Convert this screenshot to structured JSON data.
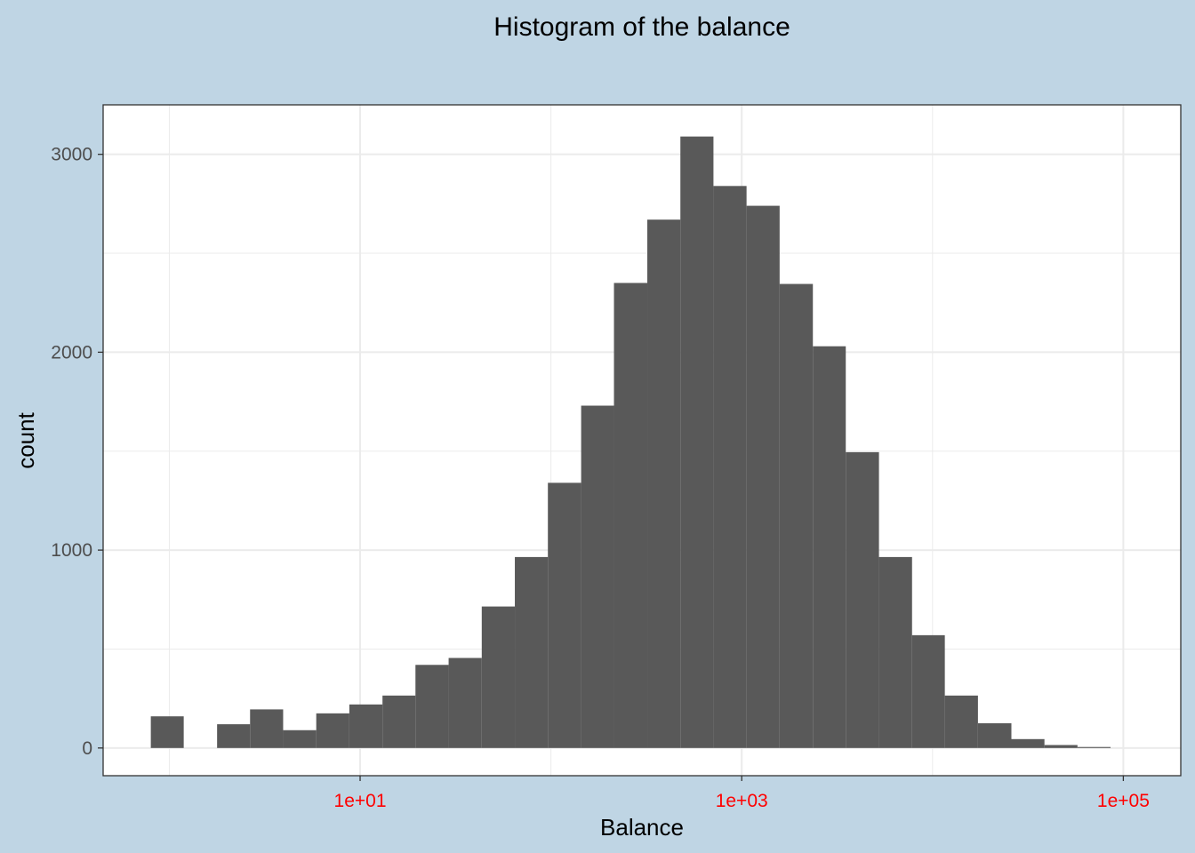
{
  "chart_data": {
    "type": "bar",
    "title": "Histogram of the balance",
    "xlabel": "Balance",
    "ylabel": "count",
    "x_scale": "log10",
    "xlim": [
      0.45,
      200000
    ],
    "ylim": [
      -140,
      3250
    ],
    "x_ticks": [
      {
        "value": 10,
        "label": "1e+01"
      },
      {
        "value": 1000,
        "label": "1e+03"
      },
      {
        "value": 100000,
        "label": "1e+05"
      }
    ],
    "y_ticks": [
      {
        "value": 0,
        "label": "0"
      },
      {
        "value": 1000,
        "label": "1000"
      },
      {
        "value": 2000,
        "label": "2000"
      },
      {
        "value": 3000,
        "label": "3000"
      }
    ],
    "grid": true,
    "legend": "none",
    "bar_color": "#595959",
    "plot_background": "#ffffff",
    "figure_background": "#bfd5e4",
    "gridline_color": "#ebebeb",
    "x_tick_label_color": "#ff0000",
    "bins": [
      {
        "x0": 0.8,
        "x1": 1.19,
        "count": 160
      },
      {
        "x0": 1.19,
        "x1": 1.78,
        "count": 0
      },
      {
        "x0": 1.78,
        "x1": 2.65,
        "count": 120
      },
      {
        "x0": 2.65,
        "x1": 3.95,
        "count": 195
      },
      {
        "x0": 3.95,
        "x1": 5.89,
        "count": 90
      },
      {
        "x0": 5.89,
        "x1": 8.78,
        "count": 175
      },
      {
        "x0": 8.78,
        "x1": 13.1,
        "count": 220
      },
      {
        "x0": 13.1,
        "x1": 19.5,
        "count": 265
      },
      {
        "x0": 19.5,
        "x1": 29.1,
        "count": 420
      },
      {
        "x0": 29.1,
        "x1": 43.4,
        "count": 455
      },
      {
        "x0": 43.4,
        "x1": 64.7,
        "count": 715
      },
      {
        "x0": 64.7,
        "x1": 96.4,
        "count": 965
      },
      {
        "x0": 96.4,
        "x1": 144,
        "count": 1340
      },
      {
        "x0": 144,
        "x1": 214,
        "count": 1730
      },
      {
        "x0": 214,
        "x1": 320,
        "count": 2350
      },
      {
        "x0": 320,
        "x1": 477,
        "count": 2670
      },
      {
        "x0": 477,
        "x1": 711,
        "count": 3090
      },
      {
        "x0": 711,
        "x1": 1060,
        "count": 2840
      },
      {
        "x0": 1060,
        "x1": 1580,
        "count": 2740
      },
      {
        "x0": 1580,
        "x1": 2360,
        "count": 2345
      },
      {
        "x0": 2360,
        "x1": 3510,
        "count": 2030
      },
      {
        "x0": 3510,
        "x1": 5240,
        "count": 1495
      },
      {
        "x0": 5240,
        "x1": 7810,
        "count": 965
      },
      {
        "x0": 7810,
        "x1": 11600,
        "count": 570
      },
      {
        "x0": 11600,
        "x1": 17300,
        "count": 265
      },
      {
        "x0": 17300,
        "x1": 25900,
        "count": 125
      },
      {
        "x0": 25900,
        "x1": 38600,
        "count": 45
      },
      {
        "x0": 38600,
        "x1": 57500,
        "count": 15
      },
      {
        "x0": 57500,
        "x1": 85700,
        "count": 5
      }
    ]
  }
}
